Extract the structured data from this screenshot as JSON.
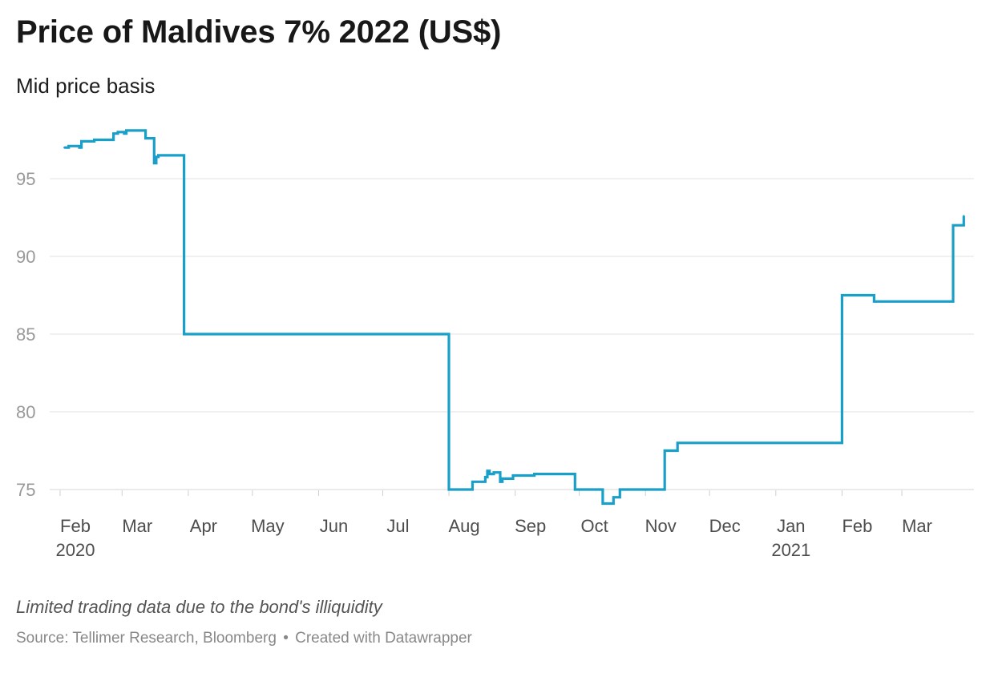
{
  "header": {
    "title": "Price of Maldives 7% 2022 (US$)",
    "subtitle": "Mid price basis"
  },
  "footer": {
    "note": "Limited trading data due to the bond's illiquidity",
    "source": "Source: Tellimer Research, Bloomberg",
    "separator": "•",
    "credit": "Created with Datawrapper"
  },
  "colors": {
    "line": "#1a9fc9",
    "grid": "#e1e1e1",
    "axis_text": "#999999",
    "tick_text": "#4d4d4d"
  },
  "chart_data": {
    "type": "line",
    "title": "Price of Maldives 7% 2022 (US$)",
    "subtitle": "Mid price basis",
    "xlabel": "",
    "ylabel": "",
    "step": true,
    "grid": true,
    "ylim": [
      75,
      98.5
    ],
    "yticks": [
      75,
      80,
      85,
      90,
      95
    ],
    "xlim": [
      "2020-01-29",
      "2021-03-31"
    ],
    "xticks": [
      {
        "date": "2020-02-01",
        "label": "Feb",
        "year": "2020"
      },
      {
        "date": "2020-03-01",
        "label": "Mar"
      },
      {
        "date": "2020-04-01",
        "label": "Apr"
      },
      {
        "date": "2020-05-01",
        "label": "May"
      },
      {
        "date": "2020-06-01",
        "label": "Jun"
      },
      {
        "date": "2020-07-01",
        "label": "Jul"
      },
      {
        "date": "2020-08-01",
        "label": "Aug"
      },
      {
        "date": "2020-09-01",
        "label": "Sep"
      },
      {
        "date": "2020-10-01",
        "label": "Oct"
      },
      {
        "date": "2020-11-01",
        "label": "Nov"
      },
      {
        "date": "2020-12-01",
        "label": "Dec"
      },
      {
        "date": "2021-01-01",
        "label": "Jan",
        "year": "2021"
      },
      {
        "date": "2021-02-01",
        "label": "Feb"
      },
      {
        "date": "2021-03-01",
        "label": "Mar"
      }
    ],
    "series": [
      {
        "points": [
          [
            "2020-02-03",
            97.0
          ],
          [
            "2020-02-05",
            97.1
          ],
          [
            "2020-02-10",
            97.0
          ],
          [
            "2020-02-11",
            97.4
          ],
          [
            "2020-02-17",
            97.5
          ],
          [
            "2020-02-21",
            97.5
          ],
          [
            "2020-02-26",
            97.9
          ],
          [
            "2020-02-28",
            98.0
          ],
          [
            "2020-03-02",
            97.9
          ],
          [
            "2020-03-03",
            98.1
          ],
          [
            "2020-03-10",
            98.1
          ],
          [
            "2020-03-12",
            97.6
          ],
          [
            "2020-03-16",
            96.0
          ],
          [
            "2020-03-17",
            96.4
          ],
          [
            "2020-03-18",
            96.5
          ],
          [
            "2020-03-30",
            85.0
          ],
          [
            "2020-04-06",
            85.0
          ],
          [
            "2020-04-12",
            85.0
          ],
          [
            "2020-08-01",
            75.0
          ],
          [
            "2020-08-10",
            75.0
          ],
          [
            "2020-08-12",
            75.5
          ],
          [
            "2020-08-18",
            75.8
          ],
          [
            "2020-08-19",
            76.2
          ],
          [
            "2020-08-20",
            76.0
          ],
          [
            "2020-08-22",
            76.1
          ],
          [
            "2020-08-25",
            75.5
          ],
          [
            "2020-08-26",
            75.7
          ],
          [
            "2020-08-31",
            75.9
          ],
          [
            "2020-09-05",
            75.9
          ],
          [
            "2020-09-10",
            76.0
          ],
          [
            "2020-09-29",
            75.0
          ],
          [
            "2020-10-02",
            75.0
          ],
          [
            "2020-10-12",
            74.1
          ],
          [
            "2020-10-17",
            74.5
          ],
          [
            "2020-10-20",
            75.0
          ],
          [
            "2020-10-23",
            75.0
          ],
          [
            "2020-11-10",
            77.5
          ],
          [
            "2020-11-16",
            78.0
          ],
          [
            "2021-02-01",
            87.5
          ],
          [
            "2021-02-16",
            87.1
          ],
          [
            "2021-03-25",
            92.0
          ],
          [
            "2021-03-30",
            92.6
          ]
        ]
      }
    ]
  }
}
